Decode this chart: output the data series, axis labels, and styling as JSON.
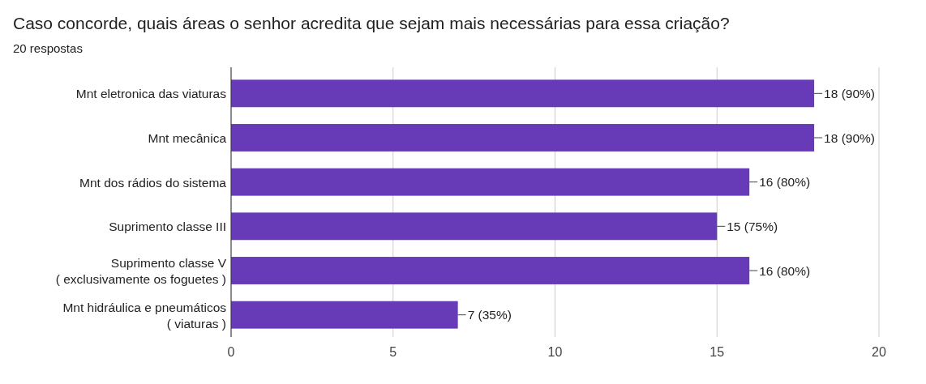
{
  "chart_data": {
    "type": "bar",
    "orientation": "horizontal",
    "title": "Caso concorde, quais áreas o senhor acredita que sejam mais necessárias para essa criação?",
    "subtitle": "20 respostas",
    "categories": [
      "Mnt eletronica das viaturas",
      "Mnt mecânica",
      "Mnt dos rádios do sistema",
      "Suprimento classe III",
      "Suprimento classe V\n( exclusivamente os foguetes )",
      "Mnt hidráulica e pneumáticos\n( viaturas )"
    ],
    "values": [
      18,
      18,
      16,
      15,
      16,
      7
    ],
    "value_labels": [
      "18 (90%)",
      "18 (90%)",
      "16 (80%)",
      "15 (75%)",
      "16 (80%)",
      "7 (35%)"
    ],
    "color": "#673ab7",
    "xlim": [
      0,
      20
    ],
    "xticks": [
      0,
      5,
      10,
      15,
      20
    ],
    "grid": "x"
  }
}
